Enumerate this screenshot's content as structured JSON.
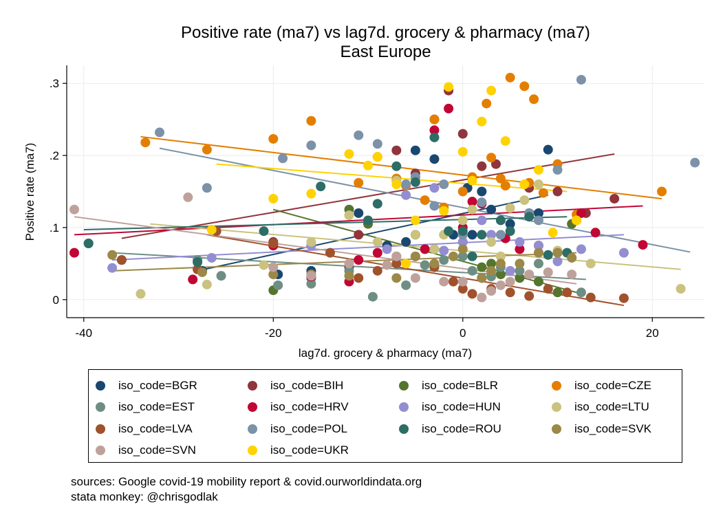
{
  "chart_data": {
    "type": "scatter",
    "title": "Positive rate (ma7) vs lag7d. grocery & pharmacy (ma7)",
    "subtitle": "East Europe",
    "xlabel": "lag7d. grocery & pharmacy (ma7)",
    "ylabel": "Positive rate (ma7)",
    "xlim": [
      -41.8,
      25.5
    ],
    "ylim": [
      -0.025,
      0.325
    ],
    "xticks": [
      -40,
      -20,
      0,
      20
    ],
    "xtick_labels": [
      "-40",
      "-20",
      "0",
      "20"
    ],
    "yticks": [
      0,
      0.1,
      0.2,
      0.3
    ],
    "ytick_labels": [
      "0",
      ".1",
      ".2",
      ".3"
    ],
    "grid": true,
    "legend_position": "bottom",
    "series": [
      {
        "name": "iso_code=BGR",
        "color": "#1a476f",
        "points": [
          [
            -27.5,
            0.04
          ],
          [
            -19.5,
            0.035
          ],
          [
            -16,
            0.04
          ],
          [
            -5,
            0.207
          ],
          [
            -3,
            0.195
          ],
          [
            0.5,
            0.155
          ],
          [
            2,
            0.15
          ],
          [
            3,
            0.125
          ],
          [
            5,
            0.105
          ],
          [
            7,
            0.12
          ],
          [
            9,
            0.208
          ],
          [
            -1,
            0.09
          ],
          [
            -11,
            0.12
          ],
          [
            -8,
            0.075
          ],
          [
            -6,
            0.08
          ],
          [
            1,
            0.09
          ],
          [
            8,
            0.12
          ]
        ],
        "fit": [
          [
            -28,
            0.04
          ],
          [
            9,
            0.145
          ]
        ]
      },
      {
        "name": "iso_code=BIH",
        "color": "#90353b",
        "points": [
          [
            -36,
            0.055
          ],
          [
            -20,
            0.08
          ],
          [
            -11,
            0.09
          ],
          [
            -7,
            0.165
          ],
          [
            -5,
            0.175
          ],
          [
            -1.5,
            0.29
          ],
          [
            -7,
            0.207
          ],
          [
            0,
            0.23
          ],
          [
            2,
            0.185
          ],
          [
            3.5,
            0.188
          ],
          [
            7,
            0.155
          ],
          [
            10,
            0.15
          ],
          [
            13,
            0.12
          ],
          [
            16,
            0.14
          ],
          [
            -12,
            0.045
          ],
          [
            -3,
            0.25
          ],
          [
            12,
            0.11
          ]
        ],
        "fit": [
          [
            -36,
            0.085
          ],
          [
            16,
            0.202
          ]
        ]
      },
      {
        "name": "iso_code=BLR",
        "color": "#55752f",
        "points": [
          [
            -20,
            0.013
          ],
          [
            -12,
            0.125
          ],
          [
            -10,
            0.105
          ],
          [
            -5,
            0.09
          ],
          [
            -3,
            0.07
          ],
          [
            0,
            0.08
          ],
          [
            2,
            0.045
          ],
          [
            4,
            0.035
          ],
          [
            6,
            0.03
          ],
          [
            8,
            0.025
          ],
          [
            10,
            0.01
          ],
          [
            11.5,
            0.105
          ],
          [
            -16,
            0.03
          ],
          [
            -7,
            0.06
          ],
          [
            3,
            0.05
          ]
        ],
        "fit": [
          [
            -20,
            0.125
          ],
          [
            12,
            0.01
          ]
        ]
      },
      {
        "name": "iso_code=CZE",
        "color": "#e37e00",
        "points": [
          [
            -33.5,
            0.218
          ],
          [
            -27,
            0.208
          ],
          [
            -20,
            0.223
          ],
          [
            -16,
            0.248
          ],
          [
            -11,
            0.162
          ],
          [
            -9,
            0.198
          ],
          [
            -7,
            0.168
          ],
          [
            -6,
            0.158
          ],
          [
            -4,
            0.138
          ],
          [
            -3,
            0.25
          ],
          [
            -2,
            0.128
          ],
          [
            0,
            0.15
          ],
          [
            1,
            0.17
          ],
          [
            2.5,
            0.272
          ],
          [
            3,
            0.197
          ],
          [
            4.5,
            0.158
          ],
          [
            5,
            0.308
          ],
          [
            6.5,
            0.296
          ],
          [
            7.5,
            0.278
          ],
          [
            8.5,
            0.148
          ],
          [
            10,
            0.188
          ],
          [
            12,
            0.118
          ],
          [
            21,
            0.15
          ],
          [
            4,
            0.168
          ],
          [
            7,
            0.162
          ]
        ],
        "fit": [
          [
            -34,
            0.226
          ],
          [
            21,
            0.14
          ]
        ]
      },
      {
        "name": "iso_code=EST",
        "color": "#6e8e84",
        "points": [
          [
            -39.5,
            0.078
          ],
          [
            -28,
            0.055
          ],
          [
            -25.5,
            0.033
          ],
          [
            -19.5,
            0.02
          ],
          [
            -16,
            0.022
          ],
          [
            -9.5,
            0.004
          ],
          [
            -6,
            0.02
          ],
          [
            -4,
            0.048
          ],
          [
            -2,
            0.055
          ],
          [
            0,
            0.06
          ],
          [
            1,
            0.04
          ],
          [
            3,
            0.032
          ],
          [
            6,
            0.04
          ],
          [
            8,
            0.05
          ],
          [
            12.5,
            0.01
          ],
          [
            -12,
            0.04
          ],
          [
            4,
            0.045
          ]
        ],
        "fit": [
          [
            -37,
            0.065
          ],
          [
            13,
            0.028
          ]
        ]
      },
      {
        "name": "iso_code=HRV",
        "color": "#c10534",
        "points": [
          [
            -41,
            0.065
          ],
          [
            -28.5,
            0.028
          ],
          [
            -20,
            0.075
          ],
          [
            -16,
            0.032
          ],
          [
            -11,
            0.055
          ],
          [
            -9,
            0.065
          ],
          [
            -4,
            0.07
          ],
          [
            -3,
            0.235
          ],
          [
            -1.5,
            0.265
          ],
          [
            1,
            0.136
          ],
          [
            2,
            0.133
          ],
          [
            4.5,
            0.085
          ],
          [
            8,
            0.075
          ],
          [
            12.5,
            0.12
          ],
          [
            14,
            0.093
          ],
          [
            19,
            0.076
          ],
          [
            -12,
            0.025
          ],
          [
            0,
            0.1
          ],
          [
            6,
            0.07
          ]
        ],
        "fit": [
          [
            -41,
            0.09
          ],
          [
            19,
            0.13
          ]
        ]
      },
      {
        "name": "iso_code=HUN",
        "color": "#938dd2",
        "points": [
          [
            -37,
            0.044
          ],
          [
            -26.5,
            0.058
          ],
          [
            -16,
            0.075
          ],
          [
            -8,
            0.07
          ],
          [
            -6,
            0.145
          ],
          [
            -5,
            0.17
          ],
          [
            -3,
            0.155
          ],
          [
            0,
            0.08
          ],
          [
            2,
            0.11
          ],
          [
            3,
            0.09
          ],
          [
            5,
            0.04
          ],
          [
            8,
            0.075
          ],
          [
            10,
            0.053
          ],
          [
            12.5,
            0.07
          ],
          [
            17,
            0.065
          ],
          [
            -2,
            0.068
          ],
          [
            6,
            0.08
          ]
        ],
        "fit": [
          [
            -37,
            0.055
          ],
          [
            17,
            0.09
          ]
        ]
      },
      {
        "name": "iso_code=LTU",
        "color": "#cac27e",
        "points": [
          [
            -34,
            0.008
          ],
          [
            -27,
            0.021
          ],
          [
            -21,
            0.048
          ],
          [
            -16,
            0.08
          ],
          [
            -12,
            0.117
          ],
          [
            -9,
            0.08
          ],
          [
            -7,
            0.165
          ],
          [
            -5,
            0.09
          ],
          [
            -2,
            0.09
          ],
          [
            0,
            0.11
          ],
          [
            1,
            0.125
          ],
          [
            3,
            0.08
          ],
          [
            5,
            0.127
          ],
          [
            6.5,
            0.138
          ],
          [
            8,
            0.16
          ],
          [
            10,
            0.068
          ],
          [
            13.5,
            0.05
          ],
          [
            23,
            0.015
          ],
          [
            -3,
            0.07
          ],
          [
            4,
            0.06
          ]
        ],
        "fit": [
          [
            -33,
            0.105
          ],
          [
            23,
            0.042
          ]
        ]
      },
      {
        "name": "iso_code=LVA",
        "color": "#a0522d",
        "points": [
          [
            -36,
            0.055
          ],
          [
            -28,
            0.042
          ],
          [
            -26,
            0.095
          ],
          [
            -20,
            0.078
          ],
          [
            -14,
            0.065
          ],
          [
            -11,
            0.03
          ],
          [
            -9,
            0.04
          ],
          [
            -5,
            0.06
          ],
          [
            -3,
            0.045
          ],
          [
            -1,
            0.025
          ],
          [
            0,
            0.015
          ],
          [
            1,
            0.008
          ],
          [
            3,
            0.015
          ],
          [
            5,
            0.01
          ],
          [
            7,
            0.005
          ],
          [
            9,
            0.015
          ],
          [
            11,
            0.01
          ],
          [
            13.5,
            0.003
          ],
          [
            17,
            0.002
          ],
          [
            -7,
            0.05
          ],
          [
            2,
            0.03
          ]
        ],
        "fit": [
          [
            -27,
            0.09
          ],
          [
            17,
            -0.008
          ]
        ]
      },
      {
        "name": "iso_code=POL",
        "color": "#7b92a8",
        "points": [
          [
            -32,
            0.232
          ],
          [
            -27,
            0.155
          ],
          [
            -19,
            0.196
          ],
          [
            -16,
            0.214
          ],
          [
            -11,
            0.228
          ],
          [
            -9,
            0.216
          ],
          [
            -6,
            0.16
          ],
          [
            -5,
            0.17
          ],
          [
            -2,
            0.16
          ],
          [
            0,
            0.09
          ],
          [
            2,
            0.135
          ],
          [
            4,
            0.09
          ],
          [
            7,
            0.12
          ],
          [
            10,
            0.18
          ],
          [
            12.5,
            0.305
          ],
          [
            24.5,
            0.19
          ],
          [
            -3,
            0.13
          ],
          [
            8,
            0.11
          ]
        ],
        "fit": [
          [
            -32,
            0.21
          ],
          [
            24,
            0.066
          ]
        ]
      },
      {
        "name": "iso_code=ROU",
        "color": "#2d6d66",
        "points": [
          [
            -39.5,
            0.078
          ],
          [
            -28,
            0.052
          ],
          [
            -21,
            0.095
          ],
          [
            -15,
            0.157
          ],
          [
            -9,
            0.133
          ],
          [
            -7,
            0.185
          ],
          [
            -5,
            0.163
          ],
          [
            -3,
            0.225
          ],
          [
            -1.5,
            0.095
          ],
          [
            0,
            0.095
          ],
          [
            2,
            0.09
          ],
          [
            4,
            0.11
          ],
          [
            5,
            0.095
          ],
          [
            7,
            0.115
          ],
          [
            9,
            0.062
          ],
          [
            11,
            0.065
          ],
          [
            -10,
            0.11
          ],
          [
            1,
            0.06
          ]
        ],
        "fit": [
          [
            -40,
            0.097
          ],
          [
            11,
            0.115
          ]
        ]
      },
      {
        "name": "iso_code=SVK",
        "color": "#9c8847",
        "points": [
          [
            -37,
            0.062
          ],
          [
            -27.5,
            0.038
          ],
          [
            -20,
            0.035
          ],
          [
            -16,
            0.035
          ],
          [
            -12,
            0.033
          ],
          [
            -7,
            0.03
          ],
          [
            -3,
            0.05
          ],
          [
            -1,
            0.06
          ],
          [
            0,
            0.07
          ],
          [
            2,
            0.03
          ],
          [
            4,
            0.05
          ],
          [
            6,
            0.05
          ],
          [
            8,
            0.065
          ],
          [
            10,
            0.065
          ],
          [
            11.5,
            0.058
          ],
          [
            -5,
            0.06
          ],
          [
            3,
            0.04
          ]
        ],
        "fit": [
          [
            -37,
            0.04
          ],
          [
            12,
            0.065
          ]
        ]
      },
      {
        "name": "iso_code=SVN",
        "color": "#bfa19c",
        "points": [
          [
            -41,
            0.125
          ],
          [
            -29,
            0.142
          ],
          [
            -20,
            0.045
          ],
          [
            -16,
            0.033
          ],
          [
            -12,
            0.05
          ],
          [
            -8,
            0.048
          ],
          [
            -5,
            0.03
          ],
          [
            -2,
            0.025
          ],
          [
            0,
            0.025
          ],
          [
            2,
            0.003
          ],
          [
            3,
            0.012
          ],
          [
            5,
            0.025
          ],
          [
            7,
            0.035
          ],
          [
            9,
            0.038
          ],
          [
            11.5,
            0.035
          ],
          [
            -7,
            0.06
          ],
          [
            4,
            0.02
          ]
        ],
        "fit": [
          [
            -41,
            0.115
          ],
          [
            12,
            0.022
          ]
        ]
      },
      {
        "name": "iso_code=UKR",
        "color": "#ffd200",
        "points": [
          [
            -26.5,
            0.097
          ],
          [
            -20,
            0.14
          ],
          [
            -16,
            0.147
          ],
          [
            -12,
            0.202
          ],
          [
            -10,
            0.186
          ],
          [
            -9,
            0.198
          ],
          [
            -7,
            0.16
          ],
          [
            -5,
            0.11
          ],
          [
            -2,
            0.123
          ],
          [
            -1.5,
            0.295
          ],
          [
            0,
            0.205
          ],
          [
            1,
            0.165
          ],
          [
            2,
            0.247
          ],
          [
            3,
            0.29
          ],
          [
            4.5,
            0.22
          ],
          [
            6.5,
            0.16
          ],
          [
            9.5,
            0.093
          ],
          [
            12,
            0.11
          ],
          [
            -6,
            0.05
          ],
          [
            8,
            0.18
          ]
        ],
        "fit": [
          [
            -26,
            0.188
          ],
          [
            11,
            0.15
          ]
        ]
      }
    ]
  },
  "notes": {
    "line1": "sources: Google covid-19 mobility report & covid.ourworldindata.org",
    "line2": "stata monkey: @chrisgodlak"
  }
}
